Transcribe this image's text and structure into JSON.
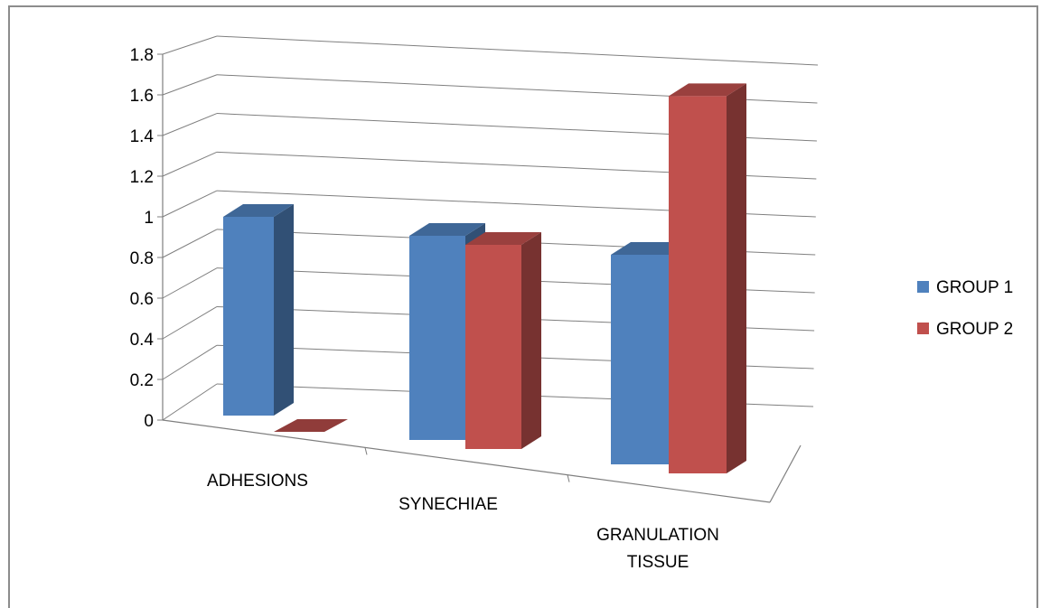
{
  "chart_data": {
    "type": "bar",
    "style": "3d-clustered-column",
    "categories": [
      "ADHESIONS",
      "SYNECHIAE",
      "GRANULATION TISSUE"
    ],
    "series": [
      {
        "name": "GROUP 1",
        "values": [
          1,
          1,
          1
        ],
        "color": "#4F81BD"
      },
      {
        "name": "GROUP 2",
        "values": [
          0,
          1,
          1.8
        ],
        "color": "#C0504D"
      }
    ],
    "ylim": [
      0,
      1.8
    ],
    "yticks": [
      "0",
      "0.2",
      "0.4",
      "0.6",
      "0.8",
      "1",
      "1.2",
      "1.4",
      "1.6",
      "1.8"
    ],
    "grid": true,
    "legend": "right"
  },
  "colors": {
    "axis": "#7f7f7f",
    "grid": "#7f7f7f",
    "border": "#8c8c8c"
  }
}
